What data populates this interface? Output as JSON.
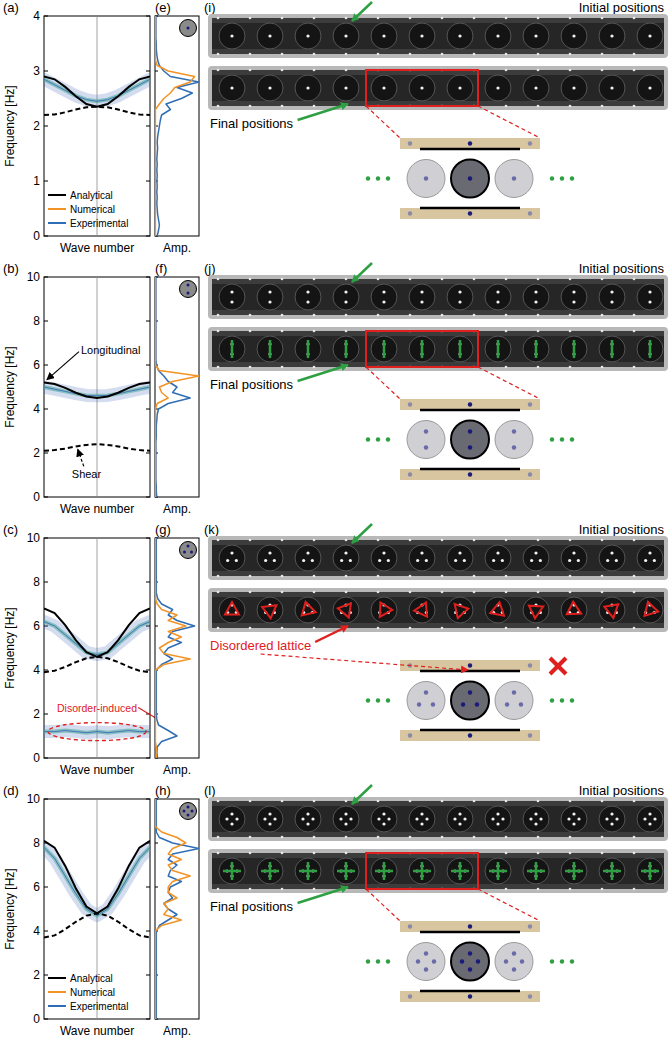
{
  "chart_data": [
    {
      "type": "line",
      "label": "(a)",
      "spectrum_label": "(e)",
      "ylabel": "Frequency [Hz]",
      "xlabel": "Wave number",
      "spectrum_xlabel": "Amp.",
      "x": [
        -1,
        -0.8,
        -0.6,
        -0.4,
        -0.2,
        0,
        0.2,
        0.4,
        0.6,
        0.8,
        1
      ],
      "xlim": [
        -1,
        1
      ],
      "xticks": [
        0
      ],
      "ylim": [
        0,
        4
      ],
      "yticks": [
        0,
        1,
        2,
        3,
        4
      ],
      "tick_labels": "y",
      "legend": "lower left",
      "series": [
        {
          "name": "Analytical",
          "color": "#000000",
          "line_style": "solid",
          "values": [
            2.9,
            2.85,
            2.71,
            2.54,
            2.4,
            2.35,
            2.4,
            2.54,
            2.71,
            2.85,
            2.9
          ]
        },
        {
          "color": "#000000",
          "line_style": "dashed",
          "values": [
            2.2,
            2.21,
            2.25,
            2.3,
            2.34,
            2.35,
            2.34,
            2.3,
            2.25,
            2.21,
            2.2
          ]
        },
        {
          "type": "contour",
          "color": "#3b5fb5",
          "values": [
            2.85,
            2.75,
            2.65,
            2.55,
            2.48,
            2.45,
            2.48,
            2.55,
            2.65,
            2.75,
            2.85
          ]
        }
      ],
      "spectrum": {
        "y": [
          0,
          0.1,
          0.2,
          0.3,
          0.4,
          0.5,
          0.6,
          0.7,
          0.8,
          0.9,
          1,
          1.1,
          1.2,
          1.3,
          1.4,
          1.5,
          1.6,
          1.7,
          1.8,
          1.9,
          2,
          2.1,
          2.2,
          2.3,
          2.4,
          2.5,
          2.6,
          2.7,
          2.8,
          2.9,
          3,
          3.1,
          3.2,
          3.3,
          3.4,
          3.5,
          3.6,
          3.7,
          3.8,
          3.9,
          4
        ],
        "xlim": [
          0,
          1
        ],
        "tick_labels": false,
        "series": [
          {
            "name": "Numerical",
            "color": "#f39325",
            "values": [
              0.01,
              0.01,
              0.01,
              0.01,
              0.01,
              0.01,
              0.01,
              0.01,
              0.01,
              0.01,
              0.01,
              0.01,
              0.01,
              0.01,
              0.01,
              0.01,
              0.01,
              0.01,
              0.01,
              0.01,
              0.01,
              0.01,
              0.01,
              0.01,
              0.1,
              0.2,
              0.35,
              0.45,
              0.8,
              0.9,
              0.3,
              0.05,
              0.01,
              0.01,
              0.01,
              0.01,
              0.01,
              0.01,
              0.01,
              0.01,
              0.01
            ]
          },
          {
            "name": "Experimental",
            "color": "#2f6eb5",
            "values": [
              0.05,
              0.08,
              0.1,
              0.08,
              0.06,
              0.05,
              0.04,
              0.05,
              0.04,
              0.05,
              0.04,
              0.05,
              0.04,
              0.05,
              0.04,
              0.05,
              0.06,
              0.05,
              0.06,
              0.08,
              0.1,
              0.12,
              0.15,
              0.35,
              0.25,
              0.6,
              0.85,
              0.5,
              1.0,
              0.35,
              0.2,
              0.1,
              0.06,
              0.04,
              0.03,
              0.03,
              0.02,
              0.02,
              0.02,
              0.02,
              0.02
            ]
          }
        ]
      }
    },
    {
      "type": "line",
      "label": "(b)",
      "spectrum_label": "(f)",
      "ylabel": "Frequency [Hz]",
      "xlabel": "Wave number",
      "spectrum_xlabel": "Amp.",
      "x": [
        -1,
        -0.8,
        -0.6,
        -0.4,
        -0.2,
        0,
        0.2,
        0.4,
        0.6,
        0.8,
        1
      ],
      "xlim": [
        -1,
        1
      ],
      "xticks": [
        0
      ],
      "ylim": [
        0,
        10
      ],
      "yticks": [
        0,
        2,
        4,
        6,
        8,
        10
      ],
      "tick_labels": "y",
      "series": [
        {
          "color": "#000000",
          "line_style": "solid",
          "values": [
            5.2,
            5.13,
            4.96,
            4.74,
            4.57,
            4.5,
            4.57,
            4.74,
            4.96,
            5.13,
            5.2
          ]
        },
        {
          "color": "#000000",
          "line_style": "dashed",
          "values": [
            2.1,
            2.13,
            2.2,
            2.3,
            2.37,
            2.4,
            2.37,
            2.3,
            2.2,
            2.13,
            2.1
          ]
        },
        {
          "type": "contour",
          "color": "#3b5fb5",
          "values": [
            5.0,
            4.9,
            4.8,
            4.7,
            4.62,
            4.6,
            4.62,
            4.7,
            4.8,
            4.9,
            5.0
          ]
        }
      ],
      "annotations": [
        "Longitudinal",
        "Shear"
      ],
      "spectrum": {
        "y": [
          0,
          0.25,
          0.5,
          0.75,
          1,
          1.25,
          1.5,
          1.75,
          2,
          2.25,
          2.5,
          2.75,
          3,
          3.25,
          3.5,
          3.75,
          4,
          4.25,
          4.5,
          4.75,
          5,
          5.25,
          5.5,
          5.75,
          6,
          6.25,
          6.5,
          6.75,
          7,
          7.25,
          7.5,
          7.75,
          8,
          8.25,
          8.5,
          8.75,
          9,
          9.25,
          9.5,
          9.75,
          10
        ],
        "xlim": [
          0,
          1
        ],
        "tick_labels": false,
        "series": [
          {
            "color": "#f39325",
            "values": [
              0.01,
              0.01,
              0.01,
              0.01,
              0.01,
              0.01,
              0.01,
              0.01,
              0.01,
              0.01,
              0.01,
              0.01,
              0.01,
              0.01,
              0.01,
              0.01,
              0.01,
              0.05,
              0.3,
              0.15,
              0.1,
              0.4,
              1.0,
              0.1,
              0.01,
              0.01,
              0.01,
              0.01,
              0.01,
              0.01,
              0.01,
              0.01,
              0.01,
              0.01,
              0.01,
              0.01,
              0.01,
              0.01,
              0.01,
              0.01,
              0.01
            ]
          },
          {
            "color": "#2f6eb5",
            "values": [
              0.04,
              0.03,
              0.03,
              0.02,
              0.02,
              0.02,
              0.02,
              0.02,
              0.02,
              0.02,
              0.02,
              0.03,
              0.03,
              0.03,
              0.04,
              0.05,
              0.08,
              0.3,
              0.8,
              0.4,
              0.5,
              0.3,
              0.2,
              0.08,
              0.03,
              0.02,
              0.02,
              0.02,
              0.02,
              0.02,
              0.02,
              0.02,
              0.02,
              0.02,
              0.02,
              0.02,
              0.02,
              0.02,
              0.02,
              0.02,
              0.02
            ]
          }
        ]
      }
    },
    {
      "type": "line",
      "label": "(c)",
      "spectrum_label": "(g)",
      "ylabel": "Frequency [Hz]",
      "xlabel": "Wave number",
      "spectrum_xlabel": "Amp.",
      "x": [
        -1,
        -0.8,
        -0.6,
        -0.4,
        -0.2,
        0,
        0.2,
        0.4,
        0.6,
        0.8,
        1
      ],
      "xlim": [
        -1,
        1
      ],
      "xticks": [
        0
      ],
      "ylim": [
        0,
        10
      ],
      "yticks": [
        0,
        2,
        4,
        6,
        8,
        10
      ],
      "tick_labels": "y",
      "series": [
        {
          "color": "#000000",
          "line_style": "solid",
          "values": [
            6.8,
            6.59,
            6.04,
            5.36,
            4.81,
            4.6,
            4.81,
            5.36,
            6.04,
            6.59,
            6.8
          ]
        },
        {
          "color": "#000000",
          "line_style": "dashed",
          "values": [
            3.9,
            3.97,
            4.14,
            4.36,
            4.53,
            4.6,
            4.53,
            4.36,
            4.14,
            3.97,
            3.9
          ]
        },
        {
          "type": "contour",
          "color": "#3b5fb5",
          "values": [
            6.2,
            6.0,
            5.6,
            5.2,
            4.8,
            4.7,
            4.8,
            5.2,
            5.6,
            6.0,
            6.2
          ]
        },
        {
          "type": "contour",
          "color": "#3b5fb5",
          "values": [
            1.2,
            1.2,
            1.25,
            1.2,
            1.15,
            1.2,
            1.15,
            1.2,
            1.25,
            1.2,
            1.2
          ]
        }
      ],
      "annotations": [
        "Disorder-induced"
      ],
      "spectrum": {
        "y": [
          0,
          0.25,
          0.5,
          0.75,
          1,
          1.25,
          1.5,
          1.75,
          2,
          2.25,
          2.5,
          2.75,
          3,
          3.25,
          3.5,
          3.75,
          4,
          4.25,
          4.5,
          4.75,
          5,
          5.25,
          5.5,
          5.75,
          6,
          6.25,
          6.5,
          6.75,
          7,
          7.25,
          7.5,
          7.75,
          8,
          8.25,
          8.5,
          8.75,
          9,
          9.25,
          9.5,
          9.75,
          10
        ],
        "xlim": [
          0,
          1
        ],
        "tick_labels": false,
        "series": [
          {
            "color": "#f39325",
            "values": [
              0.02,
              0.05,
              0.03,
              0.01,
              0.01,
              0.01,
              0.01,
              0.01,
              0.01,
              0.01,
              0.01,
              0.01,
              0.01,
              0.01,
              0.01,
              0.01,
              0.01,
              0.2,
              0.8,
              0.2,
              0.1,
              0.3,
              0.6,
              0.3,
              0.7,
              0.3,
              0.5,
              0.15,
              0.05,
              0.01,
              0.01,
              0.01,
              0.01,
              0.01,
              0.01,
              0.01,
              0.01,
              0.01,
              0.01,
              0.01,
              0.01
            ]
          },
          {
            "color": "#2f6eb5",
            "values": [
              0.05,
              0.05,
              0.05,
              0.15,
              0.5,
              0.3,
              0.08,
              0.04,
              0.03,
              0.03,
              0.03,
              0.03,
              0.03,
              0.03,
              0.03,
              0.03,
              0.03,
              0.15,
              0.4,
              0.2,
              0.3,
              0.6,
              0.3,
              0.4,
              0.9,
              0.5,
              0.3,
              0.4,
              0.15,
              0.06,
              0.03,
              0.03,
              0.03,
              0.03,
              0.03,
              0.03,
              0.03,
              0.03,
              0.03,
              0.03,
              0.03
            ]
          }
        ]
      }
    },
    {
      "type": "line",
      "label": "(d)",
      "spectrum_label": "(h)",
      "ylabel": "Frequency [Hz]",
      "xlabel": "Wave number",
      "spectrum_xlabel": "Amp.",
      "x": [
        -1,
        -0.8,
        -0.6,
        -0.4,
        -0.2,
        0,
        0.2,
        0.4,
        0.6,
        0.8,
        1
      ],
      "xlim": [
        -1,
        1
      ],
      "xticks": [
        0
      ],
      "ylim": [
        0,
        10
      ],
      "yticks": [
        0,
        2,
        4,
        6,
        8,
        10
      ],
      "tick_labels": "y",
      "legend": "lower left",
      "series": [
        {
          "name": "Analytical",
          "color": "#000000",
          "line_style": "solid",
          "values": [
            8.1,
            7.79,
            6.96,
            5.94,
            5.11,
            4.8,
            5.11,
            5.94,
            6.96,
            7.79,
            8.1
          ]
        },
        {
          "color": "#000000",
          "line_style": "dashed",
          "values": [
            3.7,
            3.8,
            4.08,
            4.42,
            4.7,
            4.8,
            4.7,
            4.42,
            4.08,
            3.8,
            3.7
          ]
        },
        {
          "type": "contour",
          "color": "#3b5fb5",
          "values": [
            7.8,
            7.3,
            6.5,
            5.7,
            5.0,
            4.7,
            5.0,
            5.7,
            6.5,
            7.3,
            7.8
          ]
        }
      ],
      "spectrum": {
        "y": [
          0,
          0.25,
          0.5,
          0.75,
          1,
          1.25,
          1.5,
          1.75,
          2,
          2.25,
          2.5,
          2.75,
          3,
          3.25,
          3.5,
          3.75,
          4,
          4.25,
          4.5,
          4.75,
          5,
          5.25,
          5.5,
          5.75,
          6,
          6.25,
          6.5,
          6.75,
          7,
          7.25,
          7.5,
          7.75,
          8,
          8.25,
          8.5,
          8.75,
          9,
          9.25,
          9.5,
          9.75,
          10
        ],
        "xlim": [
          0,
          1
        ],
        "tick_labels": false,
        "series": [
          {
            "name": "Numerical",
            "color": "#f39325",
            "values": [
              0.01,
              0.01,
              0.01,
              0.01,
              0.01,
              0.01,
              0.01,
              0.01,
              0.01,
              0.01,
              0.01,
              0.01,
              0.01,
              0.01,
              0.01,
              0.01,
              0.01,
              0.15,
              0.6,
              0.2,
              0.3,
              0.2,
              0.5,
              0.3,
              0.3,
              0.4,
              0.8,
              0.4,
              0.3,
              0.6,
              0.3,
              0.4,
              0.7,
              0.5,
              0.15,
              0.01,
              0.01,
              0.01,
              0.01,
              0.01,
              0.01
            ]
          },
          {
            "name": "Experimental",
            "color": "#2f6eb5",
            "values": [
              0.03,
              0.03,
              0.03,
              0.03,
              0.03,
              0.03,
              0.03,
              0.03,
              0.03,
              0.03,
              0.03,
              0.03,
              0.03,
              0.03,
              0.03,
              0.03,
              0.03,
              0.1,
              0.3,
              0.5,
              0.3,
              0.2,
              0.4,
              0.3,
              0.35,
              0.6,
              0.3,
              0.35,
              0.5,
              0.3,
              0.4,
              1.0,
              0.4,
              0.1,
              0.03,
              0.03,
              0.03,
              0.03,
              0.03,
              0.03,
              0.03
            ]
          }
        ]
      }
    }
  ],
  "diagrams": [
    {
      "label": "(i)",
      "magnets": 1,
      "initial": "Initial positions",
      "final": "Final positions"
    },
    {
      "label": "(j)",
      "magnets": 2,
      "initial": "Initial positions",
      "final": "Final positions",
      "marker": "bar"
    },
    {
      "label": "(k)",
      "magnets": 3,
      "initial": "Initial positions",
      "final": "Disordered lattice",
      "marker": "triangle"
    },
    {
      "label": "(l)",
      "magnets": 4,
      "initial": "Initial positions",
      "final": "Final positions",
      "marker": "cross"
    }
  ]
}
